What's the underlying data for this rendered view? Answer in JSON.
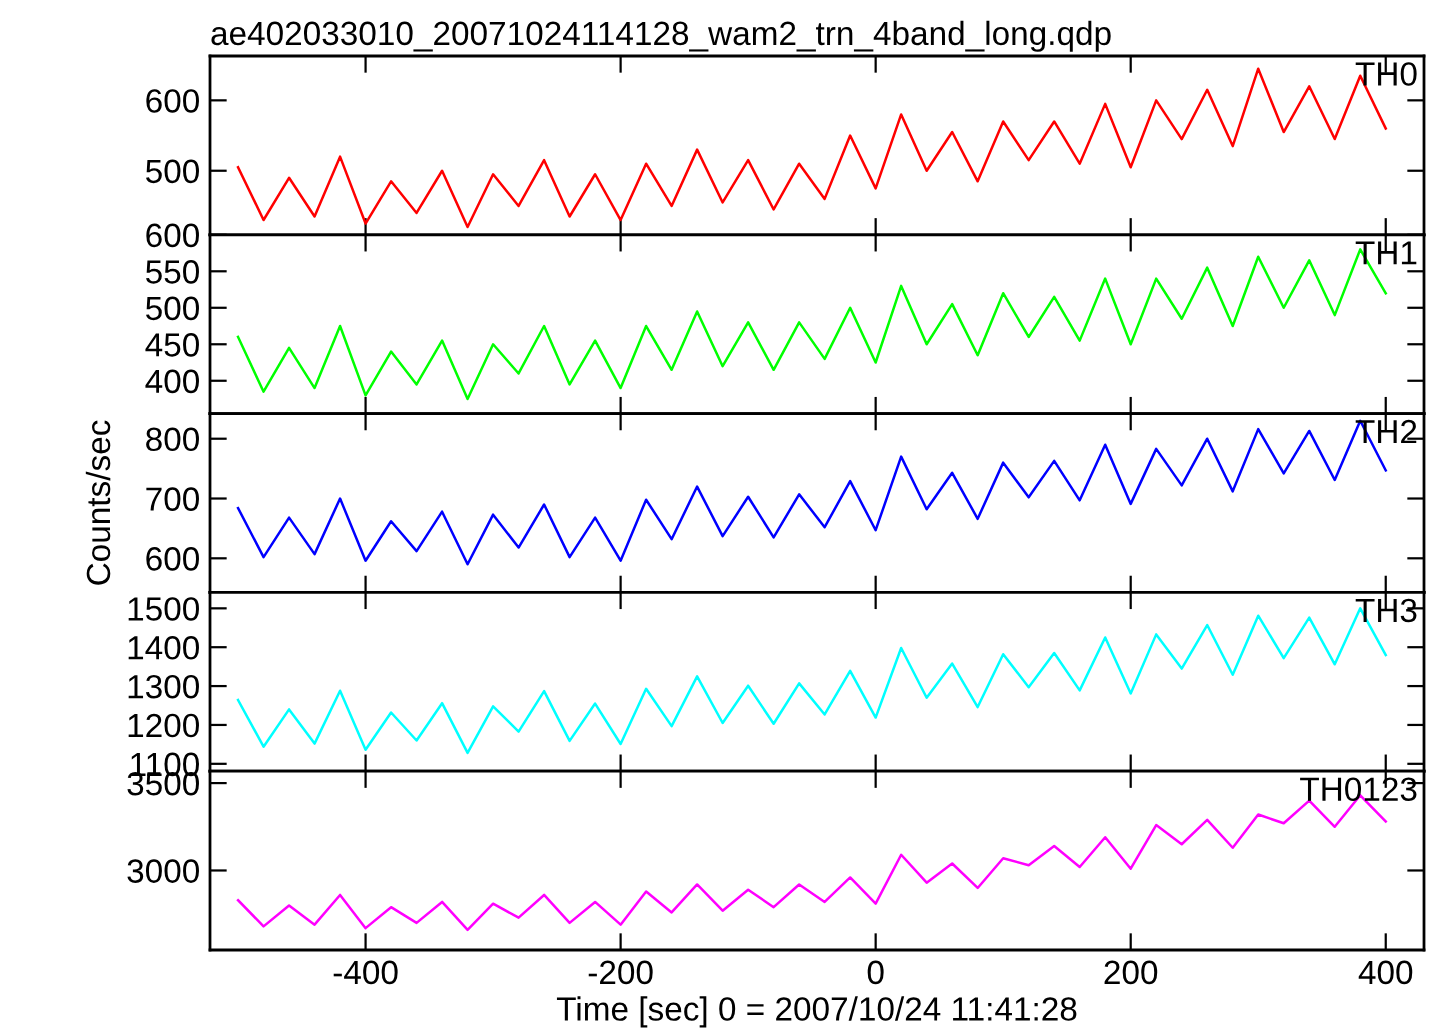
{
  "chart_data": [
    {
      "type": "line",
      "title": "ae402033010_20071024114128_wam2_trn_4band_long.qdp",
      "x": [
        -500,
        -480,
        -460,
        -440,
        -420,
        -400,
        -380,
        -360,
        -340,
        -320,
        -300,
        -280,
        -260,
        -240,
        -220,
        -200,
        -180,
        -160,
        -140,
        -120,
        -100,
        -80,
        -60,
        -40,
        -20,
        0,
        20,
        40,
        60,
        80,
        100,
        120,
        140,
        160,
        180,
        200,
        220,
        240,
        260,
        280,
        300,
        320,
        340,
        360,
        380,
        400
      ],
      "xlim": [
        -522,
        430
      ],
      "xticks": [
        -400,
        -200,
        0,
        200,
        400
      ],
      "ylim": [
        409,
        663
      ],
      "yticks": [
        500,
        600
      ],
      "tick_labels": "y",
      "grid": false,
      "series": [
        {
          "name": "TH0",
          "color": "#ff0000",
          "values": [
            505,
            430,
            490,
            435,
            520,
            425,
            485,
            440,
            500,
            420,
            495,
            450,
            515,
            435,
            495,
            430,
            510,
            450,
            530,
            455,
            515,
            445,
            510,
            460,
            550,
            475,
            580,
            500,
            555,
            485,
            570,
            515,
            570,
            510,
            595,
            505,
            600,
            545,
            615,
            535,
            645,
            555,
            620,
            545,
            635,
            560
          ]
        }
      ]
    },
    {
      "type": "line",
      "x": [
        -500,
        -480,
        -460,
        -440,
        -420,
        -400,
        -380,
        -360,
        -340,
        -320,
        -300,
        -280,
        -260,
        -240,
        -220,
        -200,
        -180,
        -160,
        -140,
        -120,
        -100,
        -80,
        -60,
        -40,
        -20,
        0,
        20,
        40,
        60,
        80,
        100,
        120,
        140,
        160,
        180,
        200,
        220,
        240,
        260,
        280,
        300,
        320,
        340,
        360,
        380,
        400
      ],
      "xlim": [
        -522,
        430
      ],
      "xticks": [
        -400,
        -200,
        0,
        200,
        400
      ],
      "ylim": [
        355,
        600
      ],
      "yticks": [
        400,
        450,
        500,
        550,
        600
      ],
      "tick_labels": "y",
      "grid": false,
      "series": [
        {
          "name": "TH1",
          "color": "#00ff00",
          "values": [
            460,
            385,
            445,
            390,
            475,
            380,
            440,
            395,
            455,
            375,
            450,
            410,
            475,
            395,
            455,
            390,
            475,
            415,
            495,
            420,
            480,
            415,
            480,
            430,
            500,
            425,
            530,
            450,
            505,
            435,
            520,
            460,
            515,
            455,
            540,
            450,
            540,
            485,
            555,
            475,
            570,
            500,
            565,
            490,
            580,
            520
          ]
        }
      ]
    },
    {
      "type": "line",
      "ylabel": "Counts/sec",
      "x": [
        -500,
        -480,
        -460,
        -440,
        -420,
        -400,
        -380,
        -360,
        -340,
        -320,
        -300,
        -280,
        -260,
        -240,
        -220,
        -200,
        -180,
        -160,
        -140,
        -120,
        -100,
        -80,
        -60,
        -40,
        -20,
        0,
        20,
        40,
        60,
        80,
        100,
        120,
        140,
        160,
        180,
        200,
        220,
        240,
        260,
        280,
        300,
        320,
        340,
        360,
        380,
        400
      ],
      "xlim": [
        -522,
        430
      ],
      "xticks": [
        -400,
        -200,
        0,
        200,
        400
      ],
      "ylim": [
        543,
        842
      ],
      "yticks": [
        600,
        700,
        800
      ],
      "tick_labels": "y",
      "grid": false,
      "series": [
        {
          "name": "TH2",
          "color": "#0000ff",
          "values": [
            684,
            602,
            668,
            607,
            700,
            596,
            662,
            612,
            678,
            590,
            673,
            618,
            690,
            602,
            668,
            596,
            698,
            632,
            720,
            637,
            703,
            635,
            707,
            652,
            729,
            647,
            770,
            682,
            743,
            666,
            760,
            702,
            763,
            697,
            790,
            691,
            783,
            722,
            800,
            712,
            816,
            742,
            813,
            731,
            830,
            747
          ]
        }
      ]
    },
    {
      "type": "line",
      "x": [
        -500,
        -480,
        -460,
        -440,
        -420,
        -400,
        -380,
        -360,
        -340,
        -320,
        -300,
        -280,
        -260,
        -240,
        -220,
        -200,
        -180,
        -160,
        -140,
        -120,
        -100,
        -80,
        -60,
        -40,
        -20,
        0,
        20,
        40,
        60,
        80,
        100,
        120,
        140,
        160,
        180,
        200,
        220,
        240,
        260,
        280,
        300,
        320,
        340,
        360,
        380,
        400
      ],
      "xlim": [
        -522,
        430
      ],
      "xticks": [
        -400,
        -200,
        0,
        200,
        400
      ],
      "ylim": [
        1081,
        1541
      ],
      "yticks": [
        1100,
        1200,
        1300,
        1400,
        1500
      ],
      "tick_labels": "y",
      "grid": false,
      "series": [
        {
          "name": "TH3",
          "color": "#00ffff",
          "values": [
            1264,
            1144,
            1240,
            1152,
            1288,
            1136,
            1232,
            1160,
            1256,
            1128,
            1248,
            1183,
            1287,
            1159,
            1255,
            1151,
            1293,
            1197,
            1325,
            1205,
            1301,
            1203,
            1307,
            1227,
            1339,
            1219,
            1398,
            1270,
            1358,
            1246,
            1382,
            1297,
            1385,
            1289,
            1425,
            1281,
            1433,
            1345,
            1457,
            1329,
            1481,
            1372,
            1476,
            1356,
            1500,
            1380
          ]
        }
      ]
    },
    {
      "type": "line",
      "xlabel": "Time [sec] 0 = 2007/10/24 11:41:28",
      "x": [
        -500,
        -480,
        -460,
        -440,
        -420,
        -400,
        -380,
        -360,
        -340,
        -320,
        -300,
        -280,
        -260,
        -240,
        -220,
        -200,
        -180,
        -160,
        -140,
        -120,
        -100,
        -80,
        -60,
        -40,
        -20,
        0,
        20,
        40,
        60,
        80,
        100,
        120,
        140,
        160,
        180,
        200,
        220,
        240,
        260,
        280,
        300,
        320,
        340,
        360,
        380,
        400
      ],
      "xlim": [
        -522,
        430
      ],
      "xticks": [
        -400,
        -200,
        0,
        200,
        400
      ],
      "ylim": [
        2545,
        3568
      ],
      "yticks": [
        3000,
        3500
      ],
      "grid": false,
      "series": [
        {
          "name": "TH0123",
          "color": "#ff00ff",
          "values": [
            2830,
            2680,
            2800,
            2690,
            2860,
            2670,
            2790,
            2700,
            2820,
            2660,
            2810,
            2730,
            2860,
            2700,
            2820,
            2690,
            2880,
            2760,
            2920,
            2770,
            2890,
            2790,
            2920,
            2820,
            2960,
            2810,
            3090,
            2930,
            3040,
            2900,
            3070,
            3030,
            3140,
            3020,
            3190,
            3010,
            3260,
            3150,
            3290,
            3130,
            3320,
            3270,
            3400,
            3250,
            3430,
            3280
          ]
        }
      ]
    }
  ]
}
